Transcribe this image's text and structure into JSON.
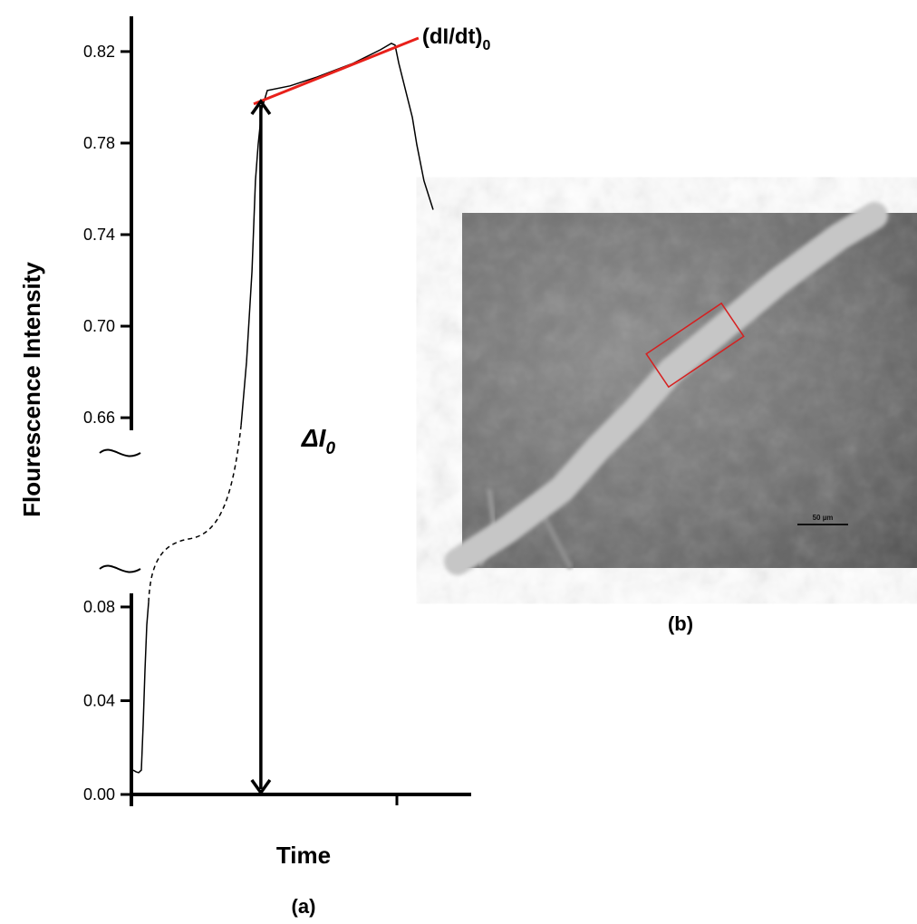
{
  "chart_data": {
    "type": "line",
    "ylabel": "Flourescence Intensity",
    "xlabel": "Time",
    "xlim": [
      0,
      100
    ],
    "color": "#000000",
    "segments": [
      {
        "ylim": [
          0,
          0.0858
        ],
        "yticks": [
          {
            "value": 0,
            "label": "0.00"
          },
          0.04,
          0.08
        ],
        "x": [
          0.53,
          1.33,
          2.13,
          2.93,
          3.47,
          4.0,
          4.53,
          5.07
        ],
        "values": [
          0.0104,
          0.0097,
          0.0093,
          0.0104,
          0.0298,
          0.053,
          0.0723,
          0.082
        ]
      },
      {
        "ylim": [
          0.6545,
          0.8354
        ],
        "yticks": [
          0.66,
          {
            "value": 0.7,
            "label": "0.70"
          },
          0.74,
          0.78,
          0.82
        ],
        "x": [
          32.3,
          33.9,
          35.5,
          36.5,
          37.3,
          38.4,
          40,
          46.7,
          54.7,
          65.3,
          73.3,
          76.5,
          77.6,
          78.7,
          82.7,
          84,
          86.1,
          88.8
        ],
        "values": [
          0.6568,
          0.6845,
          0.724,
          0.7635,
          0.7793,
          0.7951,
          0.803,
          0.805,
          0.8089,
          0.8149,
          0.8208,
          0.8236,
          0.8228,
          0.8149,
          0.7912,
          0.7793,
          0.7635,
          0.7509
        ]
      }
    ],
    "tangent": {
      "label": "(dI/dt)",
      "label_sub": "0",
      "color": "#e8201a",
      "x": [
        36,
        84.5
      ],
      "values": [
        0.7971,
        0.8259
      ]
    },
    "delta": {
      "label": "ΔI",
      "label_sub": "0",
      "x": 38.1,
      "from": 0,
      "to": 0.799
    },
    "panel_label": "(a)"
  },
  "image": {
    "scale_bar": "50 µm",
    "panel_label": "(b)"
  }
}
